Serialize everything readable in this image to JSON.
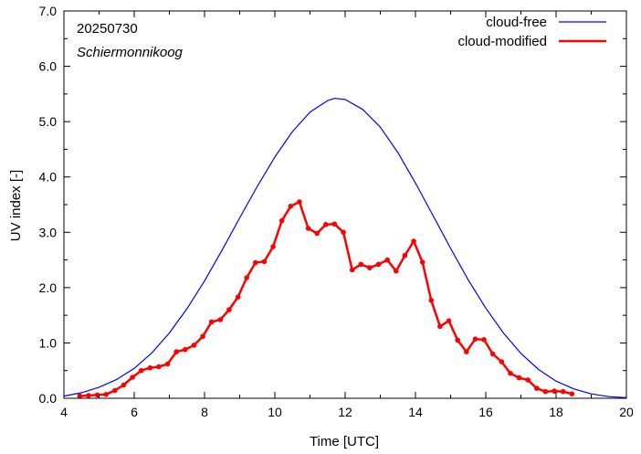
{
  "chart_data": {
    "type": "line",
    "annotations": [
      "20250730",
      "Schiermonnikoog"
    ],
    "xlabel": "Time  [UTC]",
    "ylabel": "UV index  [-]",
    "xlim": [
      4,
      20
    ],
    "ylim": [
      0,
      7
    ],
    "x_ticks": [
      4,
      6,
      8,
      10,
      12,
      14,
      16,
      18,
      20
    ],
    "x_tick_labels": [
      "4",
      "6",
      "8",
      "10",
      "12",
      "14",
      "16",
      "18",
      "20"
    ],
    "y_ticks": [
      0,
      1,
      2,
      3,
      4,
      5,
      6,
      7
    ],
    "y_tick_labels": [
      "0.0",
      "1.0",
      "2.0",
      "3.0",
      "4.0",
      "5.0",
      "6.0",
      "7.0"
    ],
    "grid": false,
    "legend_position": "top-right",
    "series": [
      {
        "name": "cloud-free",
        "color": "#0000ff",
        "marker": "none",
        "x": [
          4.0,
          4.5,
          5.0,
          5.5,
          6.0,
          6.5,
          7.0,
          7.5,
          8.0,
          8.5,
          9.0,
          9.5,
          10.0,
          10.5,
          11.0,
          11.5,
          11.7,
          12.0,
          12.5,
          13.0,
          13.5,
          14.0,
          14.5,
          15.0,
          15.5,
          16.0,
          16.5,
          17.0,
          17.5,
          18.0,
          18.5,
          19.0,
          19.5,
          20.0
        ],
        "y": [
          0.04,
          0.1,
          0.2,
          0.34,
          0.54,
          0.82,
          1.18,
          1.62,
          2.12,
          2.68,
          3.26,
          3.83,
          4.36,
          4.82,
          5.17,
          5.38,
          5.42,
          5.4,
          5.22,
          4.9,
          4.44,
          3.89,
          3.3,
          2.71,
          2.14,
          1.63,
          1.18,
          0.81,
          0.52,
          0.31,
          0.17,
          0.08,
          0.03,
          0.01
        ]
      },
      {
        "name": "cloud-modified",
        "color": "#ff0000",
        "marker": "circle",
        "x": [
          4.45,
          4.7,
          4.95,
          5.2,
          5.45,
          5.7,
          5.95,
          6.2,
          6.45,
          6.7,
          6.95,
          7.2,
          7.45,
          7.7,
          7.95,
          8.2,
          8.45,
          8.7,
          8.95,
          9.2,
          9.45,
          9.7,
          9.95,
          10.2,
          10.45,
          10.7,
          10.95,
          11.2,
          11.45,
          11.7,
          11.95,
          12.2,
          12.45,
          12.7,
          12.95,
          13.2,
          13.45,
          13.7,
          13.95,
          14.2,
          14.45,
          14.7,
          14.95,
          15.2,
          15.45,
          15.7,
          15.95,
          16.2,
          16.45,
          16.7,
          16.95,
          17.2,
          17.45,
          17.7,
          17.95,
          18.2,
          18.45
        ],
        "y": [
          0.04,
          0.05,
          0.06,
          0.07,
          0.14,
          0.24,
          0.38,
          0.5,
          0.55,
          0.57,
          0.62,
          0.84,
          0.88,
          0.96,
          1.12,
          1.38,
          1.42,
          1.6,
          1.83,
          2.18,
          2.45,
          2.47,
          2.74,
          3.21,
          3.47,
          3.55,
          3.07,
          2.98,
          3.14,
          3.15,
          3.0,
          2.32,
          2.42,
          2.36,
          2.42,
          2.5,
          2.3,
          2.58,
          2.84,
          2.46,
          1.77,
          1.3,
          1.4,
          1.05,
          0.84,
          1.07,
          1.06,
          0.8,
          0.66,
          0.45,
          0.37,
          0.33,
          0.18,
          0.12,
          0.13,
          0.12,
          0.08
        ]
      }
    ]
  }
}
